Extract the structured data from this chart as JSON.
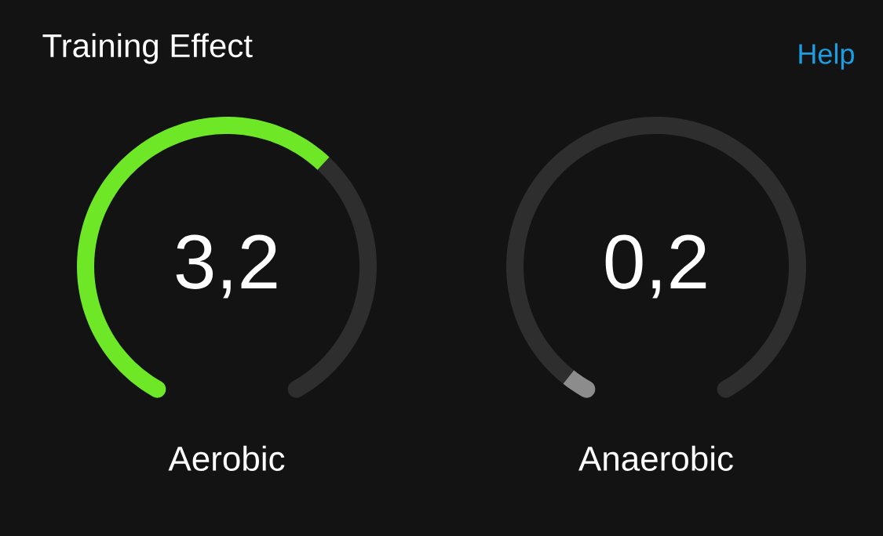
{
  "chart_data": [
    {
      "type": "donut",
      "title": "Training Effect",
      "xlabel": "Aerobic",
      "annotations": [
        "3,2",
        "Help"
      ],
      "categories": [
        null,
        null
      ],
      "values": [
        64,
        36
      ],
      "colors": [
        "#6ee826",
        "#2e2e2e"
      ]
    },
    {
      "type": "donut",
      "xlabel": "Anaerobic",
      "annotations": [
        "0,2"
      ],
      "categories": [
        null,
        null
      ],
      "values": [
        4,
        96
      ],
      "colors": [
        "#8c8c8c",
        "#2e2e2e"
      ]
    }
  ]
}
